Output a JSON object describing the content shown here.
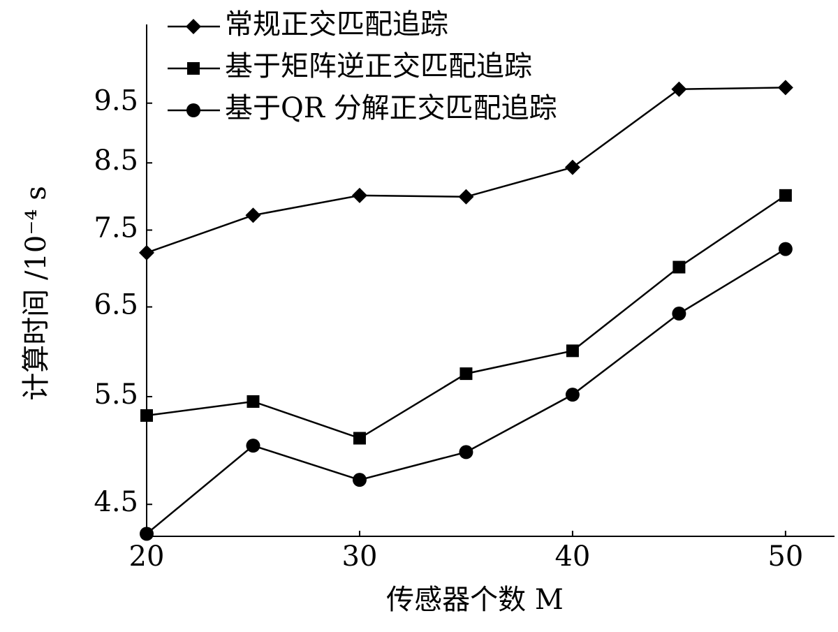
{
  "chart_data": {
    "type": "line",
    "x_label": "传感器个数 M",
    "y_label": "计算时间 /10⁻⁴ s",
    "xlim": [
      20,
      52.3
    ],
    "xticks": [
      20,
      30,
      40,
      50
    ],
    "ylim": [
      4.24,
      11
    ],
    "yticks": [
      4.5,
      5.5,
      6.5,
      7.5,
      8.5,
      9.5
    ],
    "yscale": "log",
    "grid": false,
    "legend": "upper left",
    "x": [
      20,
      25,
      30,
      35,
      40,
      45,
      50
    ],
    "series": [
      {
        "name": "常规正交匹配追踪",
        "color": "#000000",
        "marker": "diamond",
        "values": [
          7.19,
          7.71,
          8.0,
          7.98,
          8.43,
          9.75,
          9.78
        ]
      },
      {
        "name": "基于矩阵逆正交匹配追踪",
        "color": "#000000",
        "marker": "square",
        "values": [
          5.31,
          5.45,
          5.09,
          5.74,
          5.99,
          7.0,
          8.0
        ]
      },
      {
        "name": "基于QR 分解正交匹配追踪",
        "color": "#000000",
        "marker": "circle",
        "values": [
          4.26,
          5.02,
          4.71,
          4.96,
          5.52,
          6.42,
          7.24
        ]
      }
    ]
  }
}
